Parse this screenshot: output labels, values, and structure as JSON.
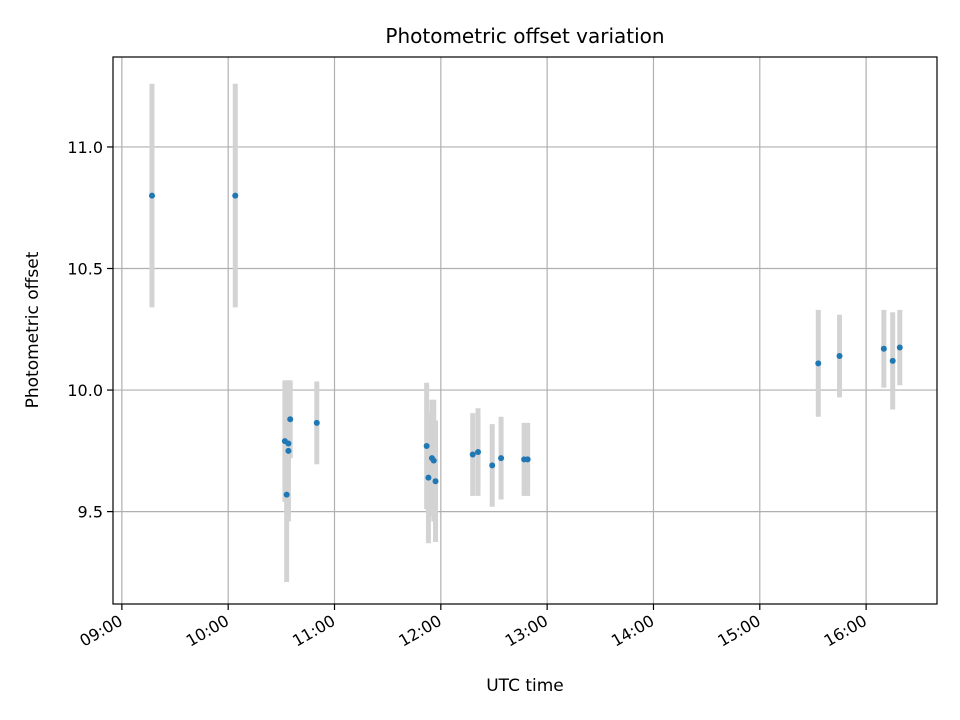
{
  "chart_data": {
    "type": "scatter",
    "title": "Photometric offset variation",
    "xlabel": "UTC time",
    "ylabel": "Photometric offset",
    "x_ticks": [
      "09:00",
      "10:00",
      "11:00",
      "12:00",
      "13:00",
      "14:00",
      "15:00",
      "16:00"
    ],
    "y_ticks": [
      "9.5",
      "10.0",
      "10.5",
      "11.0"
    ],
    "xlim": [
      "08:55",
      "16:40"
    ],
    "ylim": [
      9.12,
      11.37
    ],
    "grid": true,
    "legend": "none",
    "colors": {
      "point": "#1f77b4",
      "errorbar": "#d3d3d3",
      "grid": "#b0b0b0"
    },
    "points": [
      {
        "x": "09:17",
        "y": 10.8,
        "err": 0.46
      },
      {
        "x": "10:04",
        "y": 10.8,
        "err": 0.46
      },
      {
        "x": "10:32",
        "y": 9.79,
        "err": 0.25
      },
      {
        "x": "10:33",
        "y": 9.57,
        "err": 0.36
      },
      {
        "x": "10:34",
        "y": 9.75,
        "err": 0.29
      },
      {
        "x": "10:34",
        "y": 9.78,
        "err": 0.26
      },
      {
        "x": "10:35",
        "y": 9.88,
        "err": 0.16
      },
      {
        "x": "10:50",
        "y": 9.865,
        "err": 0.17
      },
      {
        "x": "11:52",
        "y": 9.77,
        "err": 0.26
      },
      {
        "x": "11:53",
        "y": 9.64,
        "err": 0.27
      },
      {
        "x": "11:55",
        "y": 9.72,
        "err": 0.24
      },
      {
        "x": "11:56",
        "y": 9.71,
        "err": 0.25
      },
      {
        "x": "11:57",
        "y": 9.625,
        "err": 0.25
      },
      {
        "x": "12:18",
        "y": 9.735,
        "err": 0.17
      },
      {
        "x": "12:21",
        "y": 9.745,
        "err": 0.18
      },
      {
        "x": "12:29",
        "y": 9.69,
        "err": 0.17
      },
      {
        "x": "12:34",
        "y": 9.72,
        "err": 0.17
      },
      {
        "x": "12:47",
        "y": 9.715,
        "err": 0.15
      },
      {
        "x": "12:49",
        "y": 9.715,
        "err": 0.15
      },
      {
        "x": "15:33",
        "y": 10.11,
        "err": 0.22
      },
      {
        "x": "15:45",
        "y": 10.14,
        "err": 0.17
      },
      {
        "x": "16:10",
        "y": 10.17,
        "err": 0.16
      },
      {
        "x": "16:15",
        "y": 10.12,
        "err": 0.2
      },
      {
        "x": "16:19",
        "y": 10.175,
        "err": 0.155
      }
    ]
  }
}
